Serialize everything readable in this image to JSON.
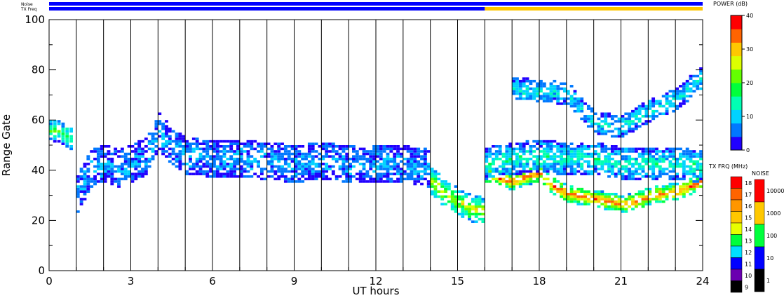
{
  "chart_data": {
    "type": "heatmap",
    "xlabel": "UT hours",
    "ylabel": "Range Gate",
    "xlim": [
      0,
      24
    ],
    "ylim": [
      0,
      100
    ],
    "x_ticks": [
      "0",
      "3",
      "6",
      "9",
      "12",
      "15",
      "18",
      "21",
      "24"
    ],
    "x_tick_values": [
      0,
      3,
      6,
      9,
      12,
      15,
      18,
      21,
      24
    ],
    "y_ticks": [
      "0",
      "20",
      "40",
      "60",
      "80",
      "100"
    ],
    "y_tick_values": [
      0,
      20,
      40,
      60,
      80,
      100
    ],
    "grid": "vertical lines every 1 hour",
    "top_strips": [
      {
        "label": "Noise",
        "segments": [
          {
            "x0": 0,
            "x1": 24,
            "value": "10"
          }
        ]
      },
      {
        "label": "TX Freq",
        "segments": [
          {
            "x0": 0,
            "x1": 16,
            "value": "11"
          },
          {
            "x0": 16,
            "x1": 24,
            "value": "15"
          }
        ]
      }
    ],
    "power_colorbar": {
      "title": "POWER (dB)",
      "range": [
        0,
        40
      ],
      "ticks": [
        "0",
        "10",
        "20",
        "30",
        "40"
      ],
      "tick_values": [
        0,
        10,
        20,
        30,
        40
      ],
      "colors": [
        "#2000ff",
        "#0078ff",
        "#00d2ff",
        "#00ffb4",
        "#00ff3c",
        "#64ff00",
        "#dcff00",
        "#ffc800",
        "#ff6400",
        "#ff0000"
      ]
    },
    "txfreq_legend": {
      "title": "TX FRQ (MHz)",
      "labels": [
        "18",
        "17",
        "16",
        "15",
        "14",
        "13",
        "12",
        "11",
        "10",
        "9"
      ],
      "colors": [
        "#ff0000",
        "#ff6400",
        "#ff9600",
        "#ffc800",
        "#e8ff00",
        "#00ff3c",
        "#00e0ff",
        "#0000ff",
        "#6a00b0",
        "#000000"
      ]
    },
    "noise_legend": {
      "title": "NOISE",
      "labels": [
        "10000",
        "1000",
        "100",
        "10",
        "1"
      ],
      "colors": [
        "#ff0000",
        "#ffc800",
        "#00ff3c",
        "#0000ff",
        "#000000"
      ]
    },
    "series": [
      {
        "x": [
          0,
          0.3,
          0.6,
          0.9
        ],
        "gate": [
          55,
          55,
          53,
          50
        ],
        "spread": 4,
        "power": 18
      },
      {
        "x": [
          1.0,
          1.5,
          2.0,
          2.5,
          3.0,
          3.5,
          4.0,
          4.5,
          5.0,
          6.0,
          7.0,
          8.0,
          9.0,
          10,
          11,
          12,
          13,
          14
        ],
        "gate": [
          30,
          40,
          42,
          40,
          42,
          45,
          55,
          48,
          45,
          44,
          44,
          43,
          42,
          43,
          42,
          42,
          42,
          40
        ],
        "spread": 7,
        "power": 8
      },
      {
        "x": [
          14,
          14.5,
          15,
          15.5,
          16
        ],
        "gate": [
          35,
          30,
          27,
          24,
          23
        ],
        "spread": 5,
        "power": 26
      },
      {
        "x": [
          16,
          16.5,
          17,
          17.5,
          18,
          18.5,
          19,
          19.5,
          20,
          20.5,
          21,
          21.5,
          22,
          22.5,
          23,
          23.5,
          24
        ],
        "gate": [
          38,
          36,
          35,
          37,
          38,
          33,
          30,
          29,
          28,
          27,
          26,
          27,
          29,
          30,
          31,
          33,
          35
        ],
        "spread": 3,
        "power": 34
      },
      {
        "x": [
          16,
          17,
          18,
          19,
          20,
          21,
          22,
          23,
          24
        ],
        "gate": [
          42,
          44,
          45,
          44,
          44,
          42,
          42,
          42,
          41
        ],
        "spread": 6,
        "power": 14
      },
      {
        "x": [
          17,
          19,
          20,
          21,
          22,
          23,
          24
        ],
        "gate": [
          72,
          70,
          58,
          57,
          63,
          68,
          77
        ],
        "spread": 4,
        "power": 12
      }
    ]
  }
}
